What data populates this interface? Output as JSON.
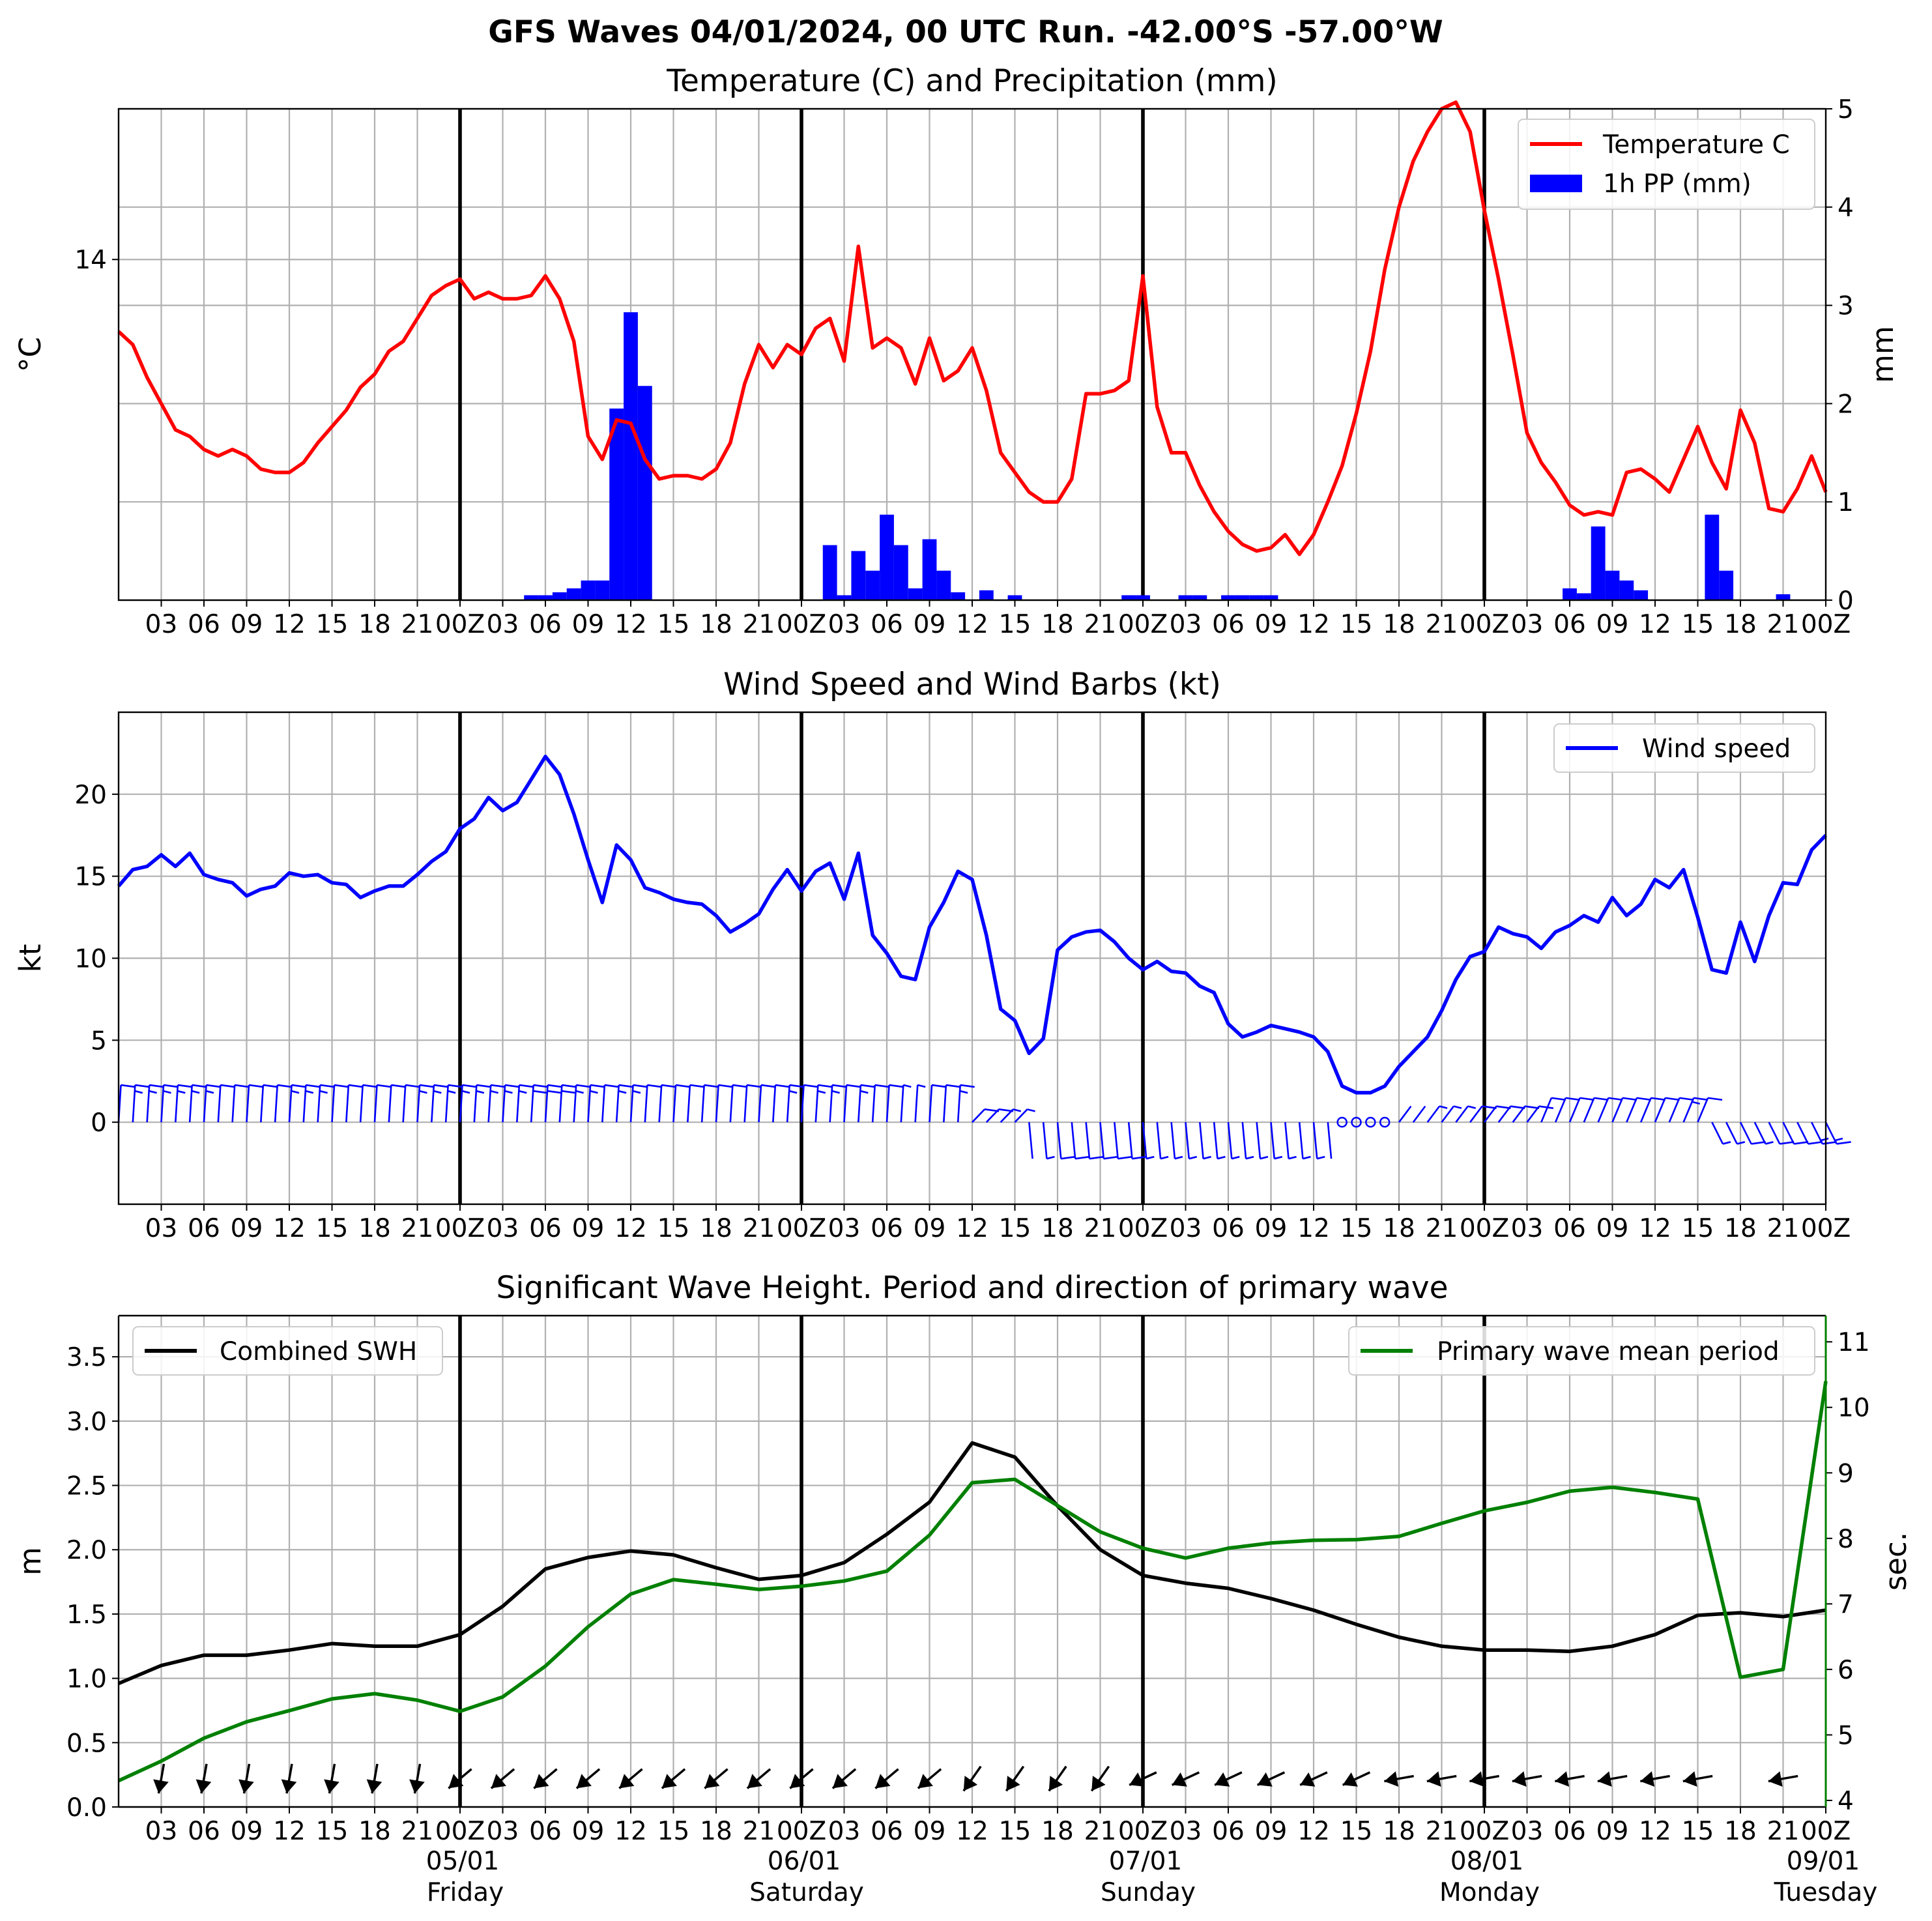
{
  "title": "GFS Waves 04/01/2024, 00 UTC Run. -42.00°S -57.00°W",
  "colors": {
    "temperature": "#ff0000",
    "precip": "#0000ff",
    "wind": "#0000ff",
    "swh": "#000000",
    "period": "#008000",
    "grid": "#b0b0b0"
  },
  "hour_tick_labels": [
    "03",
    "06",
    "09",
    "12",
    "15",
    "18",
    "21",
    "00Z",
    "03",
    "06",
    "09",
    "12",
    "15",
    "18",
    "21",
    "00Z",
    "03",
    "06",
    "09",
    "12",
    "15",
    "18",
    "21",
    "00Z",
    "03",
    "06",
    "09",
    "12",
    "15",
    "18",
    "21",
    "00Z",
    "03",
    "06",
    "09",
    "12",
    "15",
    "18",
    "21",
    "00Z"
  ],
  "day_labels": [
    {
      "date": "05/01",
      "weekday": "Friday"
    },
    {
      "date": "06/01",
      "weekday": "Saturday"
    },
    {
      "date": "07/01",
      "weekday": "Sunday"
    },
    {
      "date": "08/01",
      "weekday": "Monday"
    },
    {
      "date": "09/01",
      "weekday": "Tuesday"
    }
  ],
  "chart_data": [
    {
      "type": "line",
      "title": "Temperature (C) and Precipitation (mm)",
      "ylabel": "°C",
      "ylabel_right": "mm",
      "x_unit": "hours since 04/01/2024 00 UTC",
      "xlim": [
        0,
        120
      ],
      "ylim": [
        8.8,
        16.3
      ],
      "ylim_right": [
        0,
        5
      ],
      "yticks": [
        14
      ],
      "yticks_right": [
        0,
        1,
        2,
        3,
        4,
        5
      ],
      "legend": [
        "Temperature C",
        "1h PP (mm)"
      ],
      "legend_position": "upper right",
      "series": [
        {
          "name": "Temperature C",
          "type": "line",
          "x": [
            0,
            1,
            2,
            3,
            4,
            5,
            6,
            7,
            8,
            9,
            10,
            11,
            12,
            13,
            14,
            15,
            16,
            17,
            18,
            19,
            20,
            21,
            22,
            23,
            24,
            25,
            26,
            27,
            28,
            29,
            30,
            31,
            32,
            33,
            34,
            35,
            36,
            37,
            38,
            39,
            40,
            41,
            42,
            43,
            44,
            45,
            46,
            47,
            48,
            49,
            50,
            51,
            52,
            53,
            54,
            55,
            56,
            57,
            58,
            59,
            60,
            61,
            62,
            63,
            64,
            65,
            66,
            67,
            68,
            69,
            70,
            71,
            72,
            73,
            74,
            75,
            76,
            77,
            78,
            79,
            80,
            81,
            82,
            83,
            84,
            85,
            86,
            87,
            88,
            89,
            90,
            91,
            92,
            93,
            94,
            95,
            96,
            97,
            98,
            99,
            100,
            101,
            102,
            103,
            104,
            105,
            106,
            107,
            108,
            109,
            110,
            111,
            112,
            113,
            114,
            115,
            116,
            117,
            118,
            119,
            120
          ],
          "values": [
            12.9,
            12.7,
            12.2,
            11.8,
            11.4,
            11.3,
            11.1,
            11.0,
            11.1,
            11.0,
            10.8,
            10.75,
            10.75,
            10.9,
            11.2,
            11.45,
            11.7,
            12.05,
            12.25,
            12.6,
            12.75,
            13.1,
            13.45,
            13.6,
            13.7,
            13.4,
            13.5,
            13.4,
            13.4,
            13.45,
            13.75,
            13.4,
            12.75,
            11.3,
            10.95,
            11.55,
            11.5,
            10.95,
            10.65,
            10.7,
            10.7,
            10.65,
            10.8,
            11.2,
            12.1,
            12.7,
            12.35,
            12.7,
            12.55,
            12.95,
            13.1,
            12.45,
            14.2,
            12.65,
            12.8,
            12.65,
            12.1,
            12.8,
            12.15,
            12.3,
            12.65,
            12.0,
            11.05,
            10.75,
            10.45,
            10.3,
            10.3,
            10.65,
            11.95,
            11.95,
            12.0,
            12.15,
            13.75,
            11.75,
            11.05,
            11.05,
            10.55,
            10.15,
            9.85,
            9.65,
            9.55,
            9.6,
            9.8,
            9.5,
            9.8,
            10.3,
            10.85,
            11.65,
            12.6,
            13.85,
            14.8,
            15.5,
            15.95,
            16.3,
            16.4,
            15.95,
            14.75,
            13.7,
            12.55,
            11.35,
            10.9,
            10.6,
            10.25,
            10.1,
            10.15,
            10.1,
            10.75,
            10.8,
            10.65,
            10.45,
            10.95,
            11.45,
            10.9,
            10.5,
            11.7,
            11.2,
            10.2,
            10.15,
            10.5,
            11.0,
            10.45
          ]
        },
        {
          "name": "1h PP (mm)",
          "type": "bar",
          "x": [
            29,
            30,
            31,
            32,
            33,
            34,
            35,
            36,
            37,
            50,
            51,
            52,
            53,
            54,
            55,
            56,
            57,
            58,
            59,
            61,
            63,
            71,
            72,
            75,
            76,
            78,
            79,
            80,
            81,
            102,
            103,
            104,
            105,
            106,
            107,
            112,
            113,
            117
          ],
          "values": [
            0.05,
            0.05,
            0.08,
            0.12,
            0.2,
            0.2,
            1.95,
            2.93,
            2.18,
            0.56,
            0.05,
            0.5,
            0.3,
            0.87,
            0.56,
            0.12,
            0.62,
            0.3,
            0.08,
            0.1,
            0.05,
            0.05,
            0.05,
            0.05,
            0.05,
            0.05,
            0.05,
            0.05,
            0.05,
            0.12,
            0.07,
            0.75,
            0.3,
            0.2,
            0.1,
            0.87,
            0.3,
            0.06
          ]
        }
      ]
    },
    {
      "type": "line",
      "title": "Wind Speed and Wind Barbs (kt)",
      "ylabel": "kt",
      "x_unit": "hours since 04/01/2024 00 UTC",
      "xlim": [
        0,
        120
      ],
      "ylim": [
        -5,
        25
      ],
      "yticks": [
        0,
        5,
        10,
        15,
        20
      ],
      "legend": [
        "Wind speed"
      ],
      "legend_position": "upper right",
      "series": [
        {
          "name": "Wind speed",
          "x": [
            0,
            1,
            2,
            3,
            4,
            5,
            6,
            7,
            8,
            9,
            10,
            11,
            12,
            13,
            14,
            15,
            16,
            17,
            18,
            19,
            20,
            21,
            22,
            23,
            24,
            25,
            26,
            27,
            28,
            29,
            30,
            31,
            32,
            33,
            34,
            35,
            36,
            37,
            38,
            39,
            40,
            41,
            42,
            43,
            44,
            45,
            46,
            47,
            48,
            49,
            50,
            51,
            52,
            53,
            54,
            55,
            56,
            57,
            58,
            59,
            60,
            61,
            62,
            63,
            64,
            65,
            66,
            67,
            68,
            69,
            70,
            71,
            72,
            73,
            74,
            75,
            76,
            77,
            78,
            79,
            80,
            81,
            82,
            83,
            84,
            85,
            86,
            87,
            88,
            89,
            90,
            91,
            92,
            93,
            94,
            95,
            96,
            97,
            98,
            99,
            100,
            101,
            102,
            103,
            104,
            105,
            106,
            107,
            108,
            109,
            110,
            111,
            112,
            113,
            114,
            115,
            116,
            117,
            118,
            119,
            120
          ],
          "values": [
            14.4,
            15.4,
            15.6,
            16.3,
            15.6,
            16.4,
            15.1,
            14.8,
            14.6,
            13.8,
            14.2,
            14.4,
            15.2,
            15.0,
            15.1,
            14.6,
            14.5,
            13.7,
            14.1,
            14.4,
            14.4,
            15.1,
            15.9,
            16.5,
            17.9,
            18.5,
            19.8,
            19.0,
            19.5,
            20.9,
            22.3,
            21.2,
            18.8,
            16.0,
            13.4,
            16.9,
            16.0,
            14.3,
            14.0,
            13.6,
            13.4,
            13.3,
            12.6,
            11.6,
            12.1,
            12.7,
            14.2,
            15.4,
            14.1,
            15.3,
            15.8,
            13.6,
            16.4,
            11.4,
            10.3,
            8.9,
            8.7,
            11.9,
            13.4,
            15.3,
            14.8,
            11.4,
            6.9,
            6.2,
            4.2,
            5.1,
            10.5,
            11.3,
            11.6,
            11.7,
            11.0,
            10.0,
            9.3,
            9.8,
            9.2,
            9.1,
            8.3,
            7.9,
            6.0,
            5.2,
            5.5,
            5.9,
            5.7,
            5.5,
            5.2,
            4.3,
            2.2,
            1.8,
            1.8,
            2.2,
            3.4,
            4.3,
            5.2,
            6.8,
            8.7,
            10.1,
            10.4,
            11.9,
            11.5,
            11.3,
            10.6,
            11.6,
            12.0,
            12.6,
            12.2,
            13.7,
            12.6,
            13.3,
            14.8,
            14.3,
            15.4,
            12.5,
            9.3,
            9.1,
            12.2,
            9.8,
            12.6,
            14.6,
            14.5,
            16.6,
            17.5
          ]
        }
      ]
    },
    {
      "type": "line",
      "title": "Significant Wave Height. Period and direction of primary wave",
      "ylabel": "m",
      "ylabel_right": "sec.",
      "x_unit": "hours since 04/01/2024 00 UTC",
      "xlim": [
        0,
        120
      ],
      "ylim": [
        0,
        3.82
      ],
      "ylim_right": [
        3.9,
        11.4
      ],
      "yticks": [
        0.0,
        0.5,
        1.0,
        1.5,
        2.0,
        2.5,
        3.0,
        3.5
      ],
      "yticks_right": [
        4,
        5,
        6,
        7,
        8,
        9,
        10,
        11
      ],
      "legend_left": "Combined SWH",
      "legend_right": "Primary wave mean period",
      "series": [
        {
          "name": "Combined SWH",
          "x": [
            0,
            3,
            6,
            9,
            12,
            15,
            18,
            21,
            24,
            27,
            30,
            33,
            36,
            39,
            42,
            45,
            48,
            51,
            54,
            57,
            60,
            63,
            66,
            69,
            72,
            75,
            78,
            81,
            84,
            87,
            90,
            93,
            96,
            99,
            102,
            105,
            108,
            111,
            114,
            117,
            120
          ],
          "values": [
            0.96,
            1.1,
            1.18,
            1.18,
            1.22,
            1.27,
            1.25,
            1.25,
            1.34,
            1.56,
            1.85,
            1.94,
            1.99,
            1.96,
            1.86,
            1.77,
            1.8,
            1.9,
            2.12,
            2.37,
            2.83,
            2.72,
            2.34,
            2.0,
            1.8,
            1.74,
            1.7,
            1.62,
            1.53,
            1.42,
            1.32,
            1.25,
            1.22,
            1.22,
            1.21,
            1.25,
            1.34,
            1.49,
            1.51,
            1.48,
            1.53
          ]
        },
        {
          "name": "Primary wave mean period",
          "x": [
            0,
            3,
            6,
            9,
            12,
            15,
            18,
            21,
            24,
            27,
            30,
            33,
            36,
            39,
            42,
            45,
            48,
            51,
            54,
            57,
            60,
            63,
            66,
            69,
            72,
            75,
            78,
            81,
            84,
            87,
            90,
            93,
            96,
            99,
            102,
            105,
            108,
            111,
            114,
            117,
            120
          ],
          "values": [
            4.3,
            4.6,
            4.95,
            5.2,
            5.37,
            5.55,
            5.63,
            5.53,
            5.36,
            5.58,
            6.05,
            6.65,
            7.15,
            7.37,
            7.3,
            7.22,
            7.27,
            7.35,
            7.5,
            8.05,
            8.85,
            8.9,
            8.5,
            8.1,
            7.85,
            7.7,
            7.85,
            7.93,
            7.97,
            7.98,
            8.03,
            8.23,
            8.42,
            8.55,
            8.72,
            8.78,
            8.7,
            8.6,
            5.88,
            6.0,
            10.4
          ]
        }
      ]
    }
  ]
}
